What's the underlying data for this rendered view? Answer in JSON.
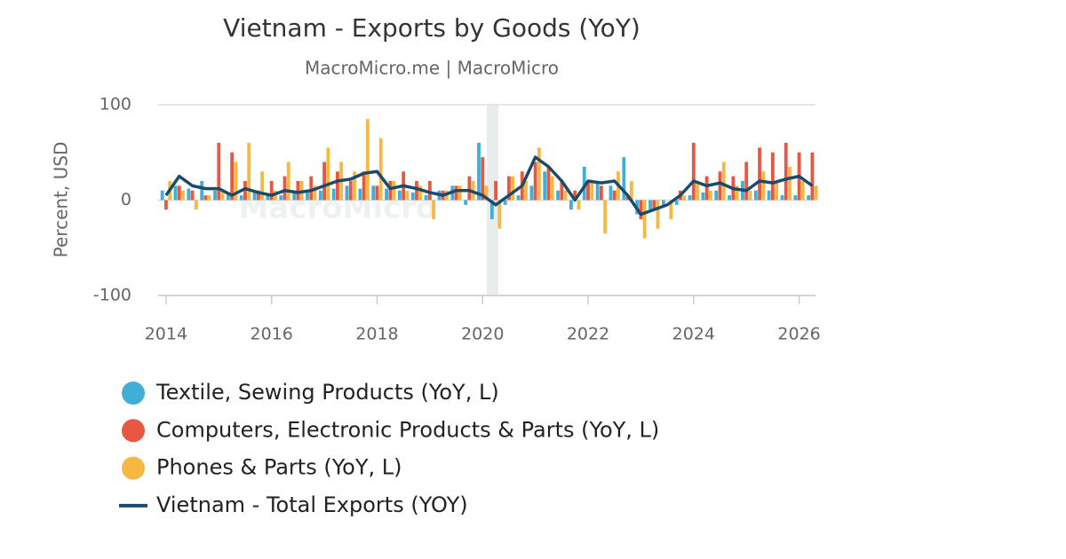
{
  "chart_data": {
    "type": "bar-line",
    "title": "Vietnam - Exports by Goods (YoY)",
    "subtitle": "MacroMicro.me | MacroMicro",
    "watermark": "MacroMicro",
    "y_axis_label": "Percent, USD",
    "x": [
      2014,
      2014.25,
      2014.5,
      2014.75,
      2015,
      2015.25,
      2015.5,
      2015.75,
      2016,
      2016.25,
      2016.5,
      2016.75,
      2017,
      2017.25,
      2017.5,
      2017.75,
      2018,
      2018.25,
      2018.5,
      2018.75,
      2019,
      2019.25,
      2019.5,
      2019.75,
      2020,
      2020.25,
      2020.5,
      2020.75,
      2021,
      2021.25,
      2021.5,
      2021.75,
      2022,
      2022.25,
      2022.5,
      2022.75,
      2023,
      2023.25,
      2023.5,
      2023.75,
      2024,
      2024.25,
      2024.5,
      2024.75,
      2025,
      2025.25,
      2025.5,
      2025.75,
      2026,
      2026.25
    ],
    "xlim": [
      2013.85,
      2026.31
    ],
    "xticks": [
      2014,
      2016,
      2018,
      2020,
      2022,
      2024,
      2026
    ],
    "ylim": [
      -100,
      100
    ],
    "yticks": [
      -100,
      0,
      100
    ],
    "grid": true,
    "shaded_x": [
      2020.08,
      2020.3
    ],
    "series": [
      {
        "name": "Textile, Sewing Products (YoY, L)",
        "kind": "bar",
        "color": "#3fafd8",
        "values": [
          10,
          15,
          12,
          20,
          10,
          8,
          5,
          8,
          5,
          5,
          8,
          10,
          10,
          12,
          15,
          12,
          15,
          12,
          10,
          8,
          5,
          10,
          15,
          -5,
          60,
          -20,
          -5,
          5,
          15,
          30,
          10,
          -10,
          35,
          20,
          15,
          45,
          -15,
          -10,
          -5,
          -5,
          5,
          8,
          10,
          5,
          20,
          10,
          10,
          5,
          5,
          5
        ]
      },
      {
        "name": "Computers, Electronic Products & Parts (YoY, L)",
        "kind": "bar",
        "color": "#e8573f",
        "values": [
          -10,
          15,
          10,
          5,
          60,
          50,
          20,
          10,
          20,
          25,
          20,
          25,
          40,
          30,
          20,
          30,
          15,
          20,
          30,
          20,
          20,
          10,
          15,
          25,
          45,
          20,
          25,
          30,
          40,
          35,
          20,
          10,
          20,
          15,
          10,
          5,
          -20,
          -10,
          0,
          10,
          60,
          25,
          30,
          25,
          40,
          55,
          50,
          60,
          50,
          50
        ]
      },
      {
        "name": "Phones & Parts (YoY, L)",
        "kind": "bar",
        "color": "#f5b942",
        "values": [
          20,
          10,
          -10,
          5,
          10,
          40,
          60,
          30,
          10,
          40,
          20,
          15,
          55,
          40,
          30,
          85,
          65,
          20,
          10,
          15,
          -20,
          10,
          15,
          20,
          15,
          -30,
          25,
          20,
          55,
          25,
          10,
          -10,
          20,
          -35,
          30,
          20,
          -40,
          -30,
          -20,
          5,
          20,
          10,
          40,
          15,
          10,
          30,
          20,
          35,
          20,
          15
        ]
      },
      {
        "name": "Vietnam - Total Exports (YOY)",
        "kind": "line",
        "color": "#1b4a6b",
        "values": [
          5,
          25,
          15,
          12,
          12,
          5,
          12,
          8,
          5,
          10,
          8,
          10,
          15,
          20,
          22,
          28,
          30,
          12,
          15,
          12,
          8,
          5,
          10,
          10,
          5,
          -5,
          5,
          15,
          45,
          35,
          20,
          0,
          20,
          18,
          20,
          5,
          -15,
          -10,
          -5,
          5,
          20,
          15,
          18,
          12,
          10,
          20,
          18,
          22,
          25,
          15
        ]
      }
    ]
  }
}
